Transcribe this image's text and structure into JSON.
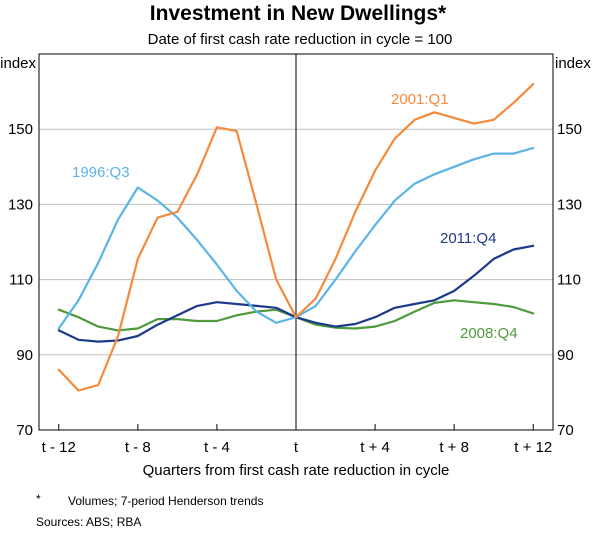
{
  "chart_data": {
    "type": "line",
    "title": "Investment in New Dwellings*",
    "subtitle": "Date of first cash rate reduction in cycle = 100",
    "ylabel_left": "index",
    "ylabel_right": "index",
    "xlabel": "Quarters from first cash rate reduction in cycle",
    "ylim": [
      70,
      170
    ],
    "yticks": [
      70,
      90,
      110,
      130,
      150
    ],
    "xlim": [
      -13,
      13
    ],
    "xticks": [
      {
        "value": -12,
        "label": "t - 12"
      },
      {
        "value": -8,
        "label": "t - 8"
      },
      {
        "value": -4,
        "label": "t - 4"
      },
      {
        "value": 0,
        "label": "t"
      },
      {
        "value": 4,
        "label": "t + 4"
      },
      {
        "value": 8,
        "label": "t + 8"
      },
      {
        "value": 12,
        "label": "t + 12"
      }
    ],
    "x": [
      -12,
      -11,
      -10,
      -9,
      -8,
      -7,
      -6,
      -5,
      -4,
      -3,
      -2,
      -1,
      0,
      1,
      2,
      3,
      4,
      5,
      6,
      7,
      8,
      9,
      10,
      11,
      12
    ],
    "series": [
      {
        "name": "2001:Q1",
        "color": "#f58a3c",
        "values": [
          86,
          80.5,
          82,
          95,
          115.5,
          126.5,
          128,
          138,
          150.5,
          149.5,
          130,
          110,
          100,
          105,
          115.5,
          128,
          139,
          147.5,
          152.5,
          154.5,
          153,
          151.5,
          152.5,
          157,
          162
        ]
      },
      {
        "name": "1996:Q3",
        "color": "#5ab4e5",
        "values": [
          97,
          104.5,
          114.5,
          126,
          134.5,
          131,
          126.5,
          120.5,
          114,
          107,
          101.5,
          98.5,
          100,
          103,
          110,
          117.5,
          124.5,
          131,
          135.5,
          138,
          140,
          142,
          143.5,
          143.5,
          145
        ]
      },
      {
        "name": "2011:Q4",
        "color": "#1d3a8a",
        "values": [
          96.5,
          94,
          93.5,
          93.8,
          95,
          98,
          100.5,
          103,
          104,
          103.5,
          103,
          102.5,
          100,
          98.5,
          97.5,
          98.2,
          100,
          102.5,
          103.5,
          104.5,
          107,
          111,
          115.5,
          118,
          119
        ]
      },
      {
        "name": "2008:Q4",
        "color": "#4e9a3c",
        "values": [
          102,
          100,
          97.5,
          96.5,
          97,
          99.5,
          99.5,
          99,
          99,
          100.5,
          101.5,
          102,
          100,
          98,
          97.2,
          97,
          97.5,
          99,
          101.5,
          103.8,
          104.5,
          104,
          103.5,
          102.7,
          101
        ]
      }
    ],
    "footnote": "Volumes; 7-period Henderson trends",
    "footnote_marker": "*",
    "sources": "Sources:  ABS; RBA"
  }
}
